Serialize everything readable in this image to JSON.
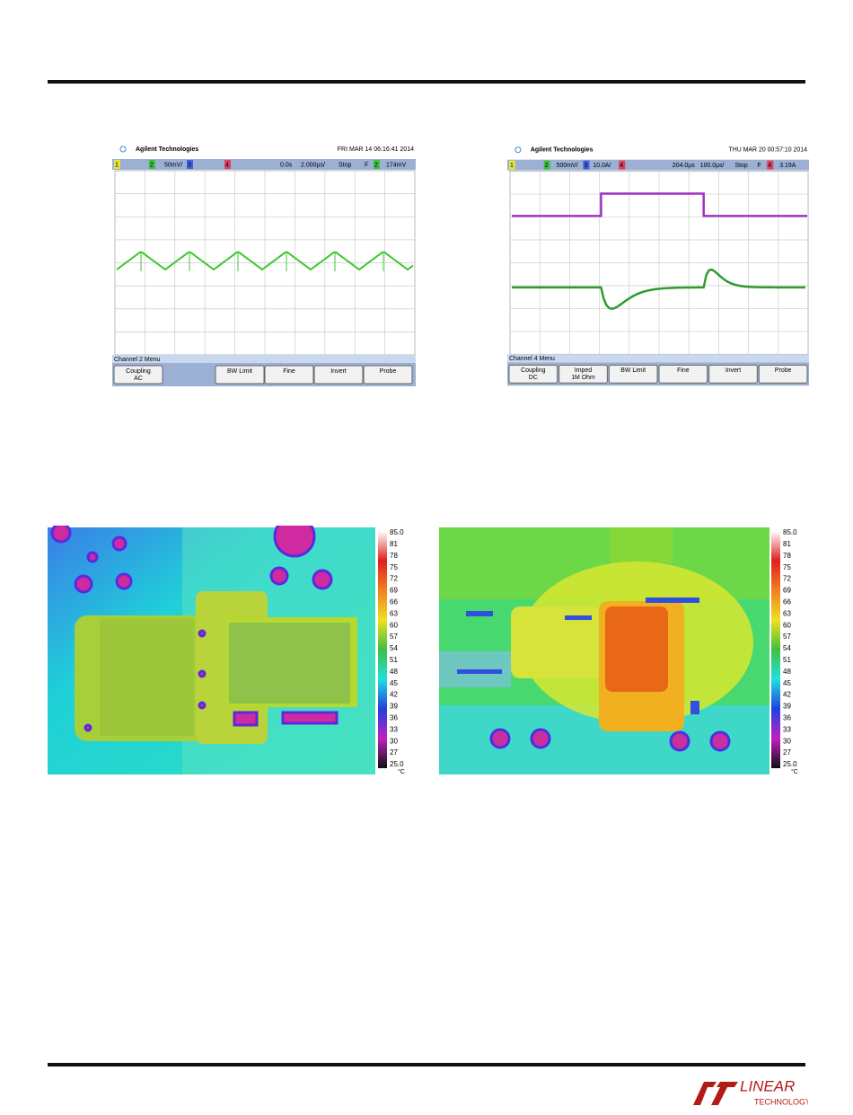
{
  "scopes": [
    {
      "brand": "Agilent Technologies",
      "date": "FRI MAR 14 06:16:41 2014",
      "status": [
        "1",
        "2",
        "50mV/",
        "3",
        "4",
        "0.0s",
        "2.000µs/",
        "Stop",
        "F",
        "2",
        "174mV"
      ],
      "menu_title": "Channel 2 Menu",
      "buttons": [
        {
          "label": "Coupling",
          "sub": "AC"
        },
        {
          "label": "BW Limit"
        },
        {
          "label": "Fine"
        },
        {
          "label": "Invert"
        },
        {
          "label": "Probe"
        }
      ]
    },
    {
      "brand": "Agilent Technologies",
      "date": "THU MAR 20 00:57:10 2014",
      "status": [
        "1",
        "2",
        "500mV/",
        "3",
        "10.0A/",
        "4",
        "204.0µs",
        "100.0µs/",
        "Stop",
        "F",
        "4",
        "3.19A"
      ],
      "menu_title": "Channel 4 Menu",
      "buttons": [
        {
          "label": "Coupling",
          "sub": "DC"
        },
        {
          "label": "Imped",
          "sub": "1M Ohm"
        },
        {
          "label": "BW Limit"
        },
        {
          "label": "Fine"
        },
        {
          "label": "Invert"
        },
        {
          "label": "Probe"
        }
      ]
    }
  ],
  "thermal": [
    {
      "scale": [
        "85.0",
        "81",
        "78",
        "75",
        "72",
        "69",
        "66",
        "63",
        "60",
        "57",
        "54",
        "51",
        "48",
        "45",
        "42",
        "39",
        "36",
        "33",
        "30",
        "27",
        "25.0"
      ],
      "unit": "°C"
    },
    {
      "scale": [
        "85.0",
        "81",
        "78",
        "75",
        "72",
        "69",
        "66",
        "63",
        "60",
        "57",
        "54",
        "51",
        "48",
        "45",
        "42",
        "39",
        "36",
        "33",
        "30",
        "27",
        "25.0"
      ],
      "unit": "°C"
    }
  ],
  "footer": {
    "logo_top": "LINEAR",
    "logo_bottom": "TECHNOLOGY"
  }
}
